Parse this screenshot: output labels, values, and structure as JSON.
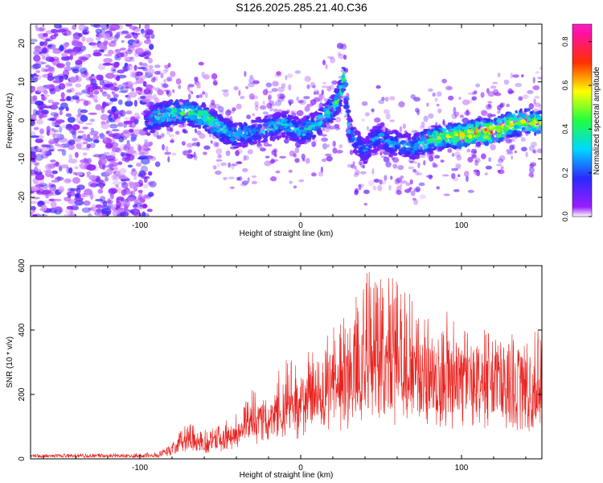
{
  "title": "S126.2025.285.21.40.C36",
  "colors": {
    "snr_line": "#e8231f",
    "background": "#ffffff",
    "axis": "#000000"
  },
  "chart_data": [
    {
      "type": "heatmap",
      "title": "",
      "xlabel": "Height of straight line (km)",
      "ylabel": "Frequency (Hz)",
      "xlim": [
        -168,
        150
      ],
      "ylim": [
        -25,
        25
      ],
      "x_ticks": [
        "-100",
        "0",
        "100"
      ],
      "y_ticks": [
        "-20",
        "-10",
        "0",
        "10",
        "20"
      ],
      "colorbar": {
        "label": "Normalized spectral amplitude",
        "range": [
          0,
          0.88
        ],
        "ticks": [
          "0.0",
          "0.2",
          "0.4",
          "0.6",
          "0.8"
        ],
        "colormap": "rainbow (violet → blue → cyan → green → yellow → red → magenta)"
      },
      "noise_region_x": [
        -168,
        -92
      ],
      "ridge": {
        "x": [
          -96,
          -90,
          -80,
          -70,
          -60,
          -50,
          -40,
          -30,
          -20,
          -10,
          0,
          10,
          20,
          25,
          27,
          28,
          30,
          35,
          40,
          45,
          50,
          55,
          60,
          70,
          80,
          90,
          100,
          110,
          120,
          130,
          140,
          150
        ],
        "frequency": [
          -1,
          1,
          2,
          2,
          1,
          -2,
          -4,
          -3,
          -2,
          -1,
          -3,
          -1,
          3,
          7,
          12,
          8,
          -2,
          -6,
          -8,
          -5,
          -4,
          -6,
          -6,
          -7,
          -5,
          -4,
          -4,
          -3,
          -3,
          -1,
          0,
          -1
        ],
        "peak_amplitude": [
          0.3,
          0.45,
          0.5,
          0.5,
          0.55,
          0.45,
          0.4,
          0.35,
          0.4,
          0.4,
          0.4,
          0.45,
          0.5,
          0.55,
          0.5,
          0.45,
          0.35,
          0.3,
          0.3,
          0.3,
          0.3,
          0.35,
          0.35,
          0.4,
          0.55,
          0.6,
          0.7,
          0.78,
          0.8,
          0.65,
          0.7,
          0.6
        ]
      }
    },
    {
      "type": "line",
      "title": "",
      "xlabel": "Height of straight line (km)",
      "ylabel": "SNR (10 * v/v)",
      "xlim": [
        -168,
        150
      ],
      "ylim": [
        0,
        600
      ],
      "x_ticks": [
        "-100",
        "0",
        "100"
      ],
      "y_ticks": [
        "0",
        "200",
        "400",
        "600"
      ],
      "series": [
        {
          "envelope_x": [
            -168,
            -100,
            -88,
            -80,
            -70,
            -60,
            -50,
            -40,
            -30,
            -20,
            -10,
            0,
            10,
            20,
            30,
            40,
            50,
            60,
            70,
            80,
            90,
            100,
            110,
            120,
            130,
            140,
            150
          ],
          "envelope_max": [
            15,
            18,
            22,
            55,
            120,
            90,
            110,
            140,
            220,
            180,
            330,
            300,
            380,
            430,
            450,
            600,
            580,
            560,
            510,
            460,
            470,
            400,
            420,
            390,
            400,
            350,
            450
          ],
          "envelope_median": [
            8,
            8,
            10,
            28,
            55,
            40,
            55,
            70,
            110,
            100,
            150,
            155,
            190,
            210,
            215,
            250,
            250,
            250,
            235,
            220,
            235,
            215,
            225,
            215,
            220,
            210,
            220
          ]
        }
      ]
    }
  ]
}
